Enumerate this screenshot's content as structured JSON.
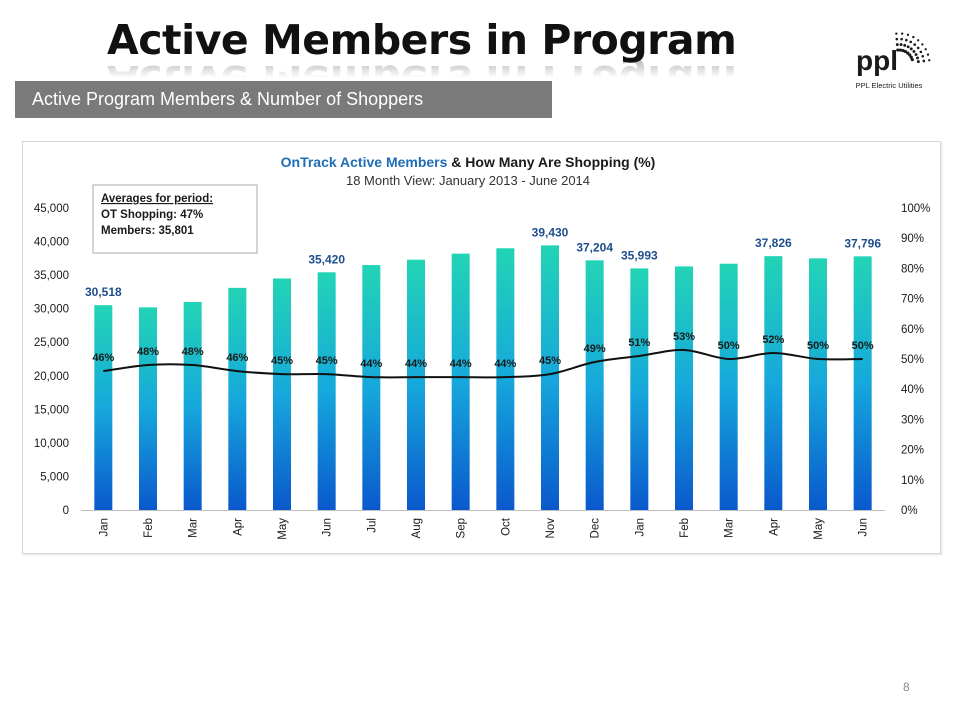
{
  "slide": {
    "title": "Active Members in Program",
    "subtitle": "Active Program Members & Number of Shoppers",
    "page_number": "8"
  },
  "logo": {
    "wordmark": "ppl",
    "company": "PPL Electric Utilities",
    "icon": "sunburst-icon",
    "color": "#1a1a1a"
  },
  "averages": {
    "heading": "Averages for period:",
    "line1": "OT Shopping: 47%",
    "line2": "Members: 35,801"
  },
  "colors": {
    "bar_top": "#22d4b5",
    "bar_mid": "#16a8dc",
    "bar_bottom": "#0a58cc",
    "line": "#111111",
    "member_label": "#1f4e8c",
    "title_blue": "#1f6db5",
    "subtitle_bar": "#7a7a7a"
  },
  "chart_data": {
    "type": "bar",
    "title_part1": "OnTrack Active Members",
    "title_part2": " & How Many Are Shopping (%)",
    "subtitle": "18 Month View: January 2013 - June 2014",
    "categories": [
      "Jan",
      "Feb",
      "Mar",
      "Apr",
      "May",
      "Jun",
      "Jul",
      "Aug",
      "Sep",
      "Oct",
      "Nov",
      "Dec",
      "Jan",
      "Feb",
      "Mar",
      "Apr",
      "May",
      "Jun"
    ],
    "series": [
      {
        "type": "bar",
        "axis": "left",
        "values": [
          30518,
          30200,
          31000,
          33100,
          34500,
          35420,
          36500,
          37300,
          38200,
          39000,
          39430,
          37204,
          35993,
          36300,
          36700,
          37826,
          37500,
          37796
        ]
      },
      {
        "type": "line",
        "axis": "right",
        "values": [
          46,
          48,
          48,
          46,
          45,
          45,
          44,
          44,
          44,
          44,
          45,
          49,
          51,
          53,
          50,
          52,
          50,
          50
        ]
      }
    ],
    "bar_value_labels": {
      "0": "30,518",
      "5": "35,420",
      "10": "39,430",
      "11": "37,204",
      "12": "35,993",
      "15": "37,826",
      "17": "37,796"
    },
    "line_value_labels": [
      "46%",
      "48%",
      "48%",
      "46%",
      "45%",
      "45%",
      "44%",
      "44%",
      "44%",
      "44%",
      "45%",
      "49%",
      "51%",
      "53%",
      "50%",
      "52%",
      "50%",
      "50%"
    ],
    "y_left": {
      "min": 0,
      "max": 45000,
      "ticks": [
        "0",
        "5,000",
        "10,000",
        "15,000",
        "20,000",
        "25,000",
        "30,000",
        "35,000",
        "40,000",
        "45,000"
      ]
    },
    "y_right": {
      "min": 0,
      "max": 100,
      "ticks": [
        "0%",
        "10%",
        "20%",
        "30%",
        "40%",
        "50%",
        "60%",
        "70%",
        "80%",
        "90%",
        "100%"
      ]
    },
    "grid": false,
    "legend": "none"
  }
}
